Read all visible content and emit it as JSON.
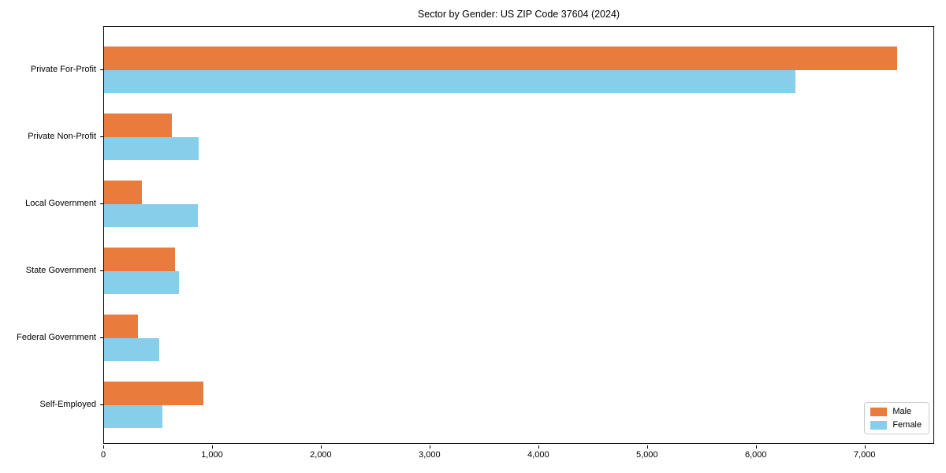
{
  "title": "Sector by Gender: US ZIP Code 37604 (2024)",
  "chart_data": {
    "type": "bar",
    "orientation": "horizontal",
    "title": "Sector by Gender: US ZIP Code 37604 (2024)",
    "xlabel": "",
    "ylabel": "",
    "categories": [
      "Private For-Profit",
      "Private Non-Profit",
      "Local Government",
      "State Government",
      "Federal Government",
      "Self-Employed"
    ],
    "series": [
      {
        "name": "Male",
        "color": "#E97B3C",
        "values": [
          7290,
          625,
          345,
          650,
          310,
          910
        ]
      },
      {
        "name": "Female",
        "color": "#87CEEB",
        "values": [
          6355,
          870,
          860,
          690,
          510,
          535
        ]
      }
    ],
    "xlim": [
      0,
      7640
    ],
    "x_ticks": [
      0,
      1000,
      2000,
      3000,
      4000,
      5000,
      6000,
      7000
    ],
    "x_tick_labels": [
      "0",
      "1,000",
      "2,000",
      "3,000",
      "4,000",
      "5,000",
      "6,000",
      "7,000"
    ],
    "grid": false,
    "legend_position": "lower right"
  }
}
